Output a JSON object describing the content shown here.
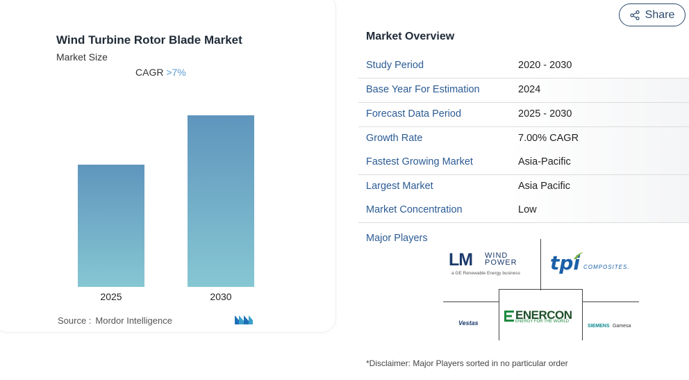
{
  "chart": {
    "title": "Wind Turbine Rotor Blade Market",
    "subtitle": "Market Size",
    "cagr_label": "CAGR",
    "cagr_value": ">7%",
    "source_label": "Source :",
    "source_value": "Mordor Intelligence"
  },
  "chart_data": {
    "type": "bar",
    "categories": [
      "2025",
      "2030"
    ],
    "values": [
      1.0,
      1.4
    ],
    "title": "Wind Turbine Rotor Blade Market",
    "subtitle": "Market Size",
    "annotations": [
      "CAGR >7%"
    ],
    "grid": false,
    "colors": [
      "#5f95bd",
      "#86c7d3"
    ]
  },
  "share": {
    "label": "Share",
    "icon": "share-icon"
  },
  "overview": {
    "title": "Market Overview",
    "rows": [
      {
        "key": "Study Period",
        "value": "2020 - 2030"
      },
      {
        "key": "Base Year For Estimation",
        "value": "2024"
      },
      {
        "key": "Forecast Data Period",
        "value": "2025 - 2030"
      },
      {
        "key": "Growth Rate",
        "value": "7.00% CAGR"
      },
      {
        "key": "Fastest Growing Market",
        "value": "Asia-Pacific"
      },
      {
        "key": "Largest Market",
        "value": "Asia Pacific"
      },
      {
        "key": "Market Concentration",
        "value": "Low"
      }
    ],
    "major_players_label": "Major Players",
    "players": {
      "lm_main": "LM",
      "lm_wind": "WIND",
      "lm_power": "POWER",
      "lm_sub": "a GE Renewable Energy business",
      "tpi": "tpi",
      "tpi_sub": "COMPOSITES.",
      "vestas": "Vestas",
      "enercon": "ENERCON",
      "enercon_sub": "ENERGY FOR THE WORLD",
      "siemens": "SIEMENS",
      "gamesa": "Gamesa"
    }
  },
  "disclaimer": "*Disclaimer: Major Players sorted in no particular order"
}
